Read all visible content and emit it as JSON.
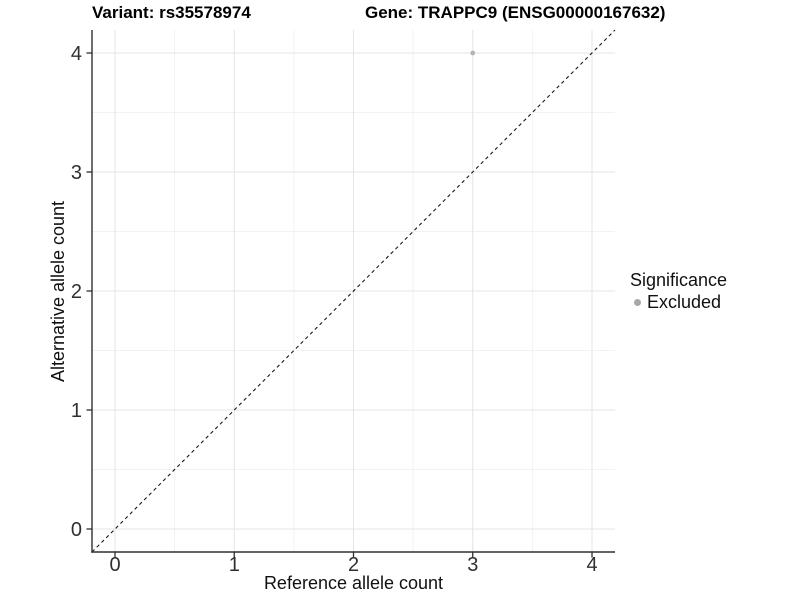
{
  "chart_data": {
    "type": "scatter",
    "title_left": "Variant: rs35578974",
    "title_right": "Gene: TRAPPC9 (ENSG00000167632)",
    "xlabel": "Reference allele count",
    "ylabel": "Alternative allele count",
    "x_ticks": [
      0,
      1,
      2,
      3,
      4
    ],
    "y_ticks": [
      0,
      1,
      2,
      3,
      4
    ],
    "x_minor": [
      0.5,
      1.5,
      2.5,
      3.5
    ],
    "y_minor": [
      0.5,
      1.5,
      2.5,
      3.5
    ],
    "xlim": [
      -0.19,
      4.19
    ],
    "ylim": [
      -0.19,
      4.19
    ],
    "grid": "major and minor gridlines on, white background",
    "points": [
      {
        "x": 3,
        "y": 4,
        "series": "Excluded"
      }
    ],
    "reference_line": {
      "kind": "identity y=x",
      "style": "dashed",
      "from": [
        -0.19,
        -0.19
      ],
      "to": [
        4.19,
        4.19
      ]
    },
    "legend": {
      "title": "Significance",
      "position": "right",
      "entries": [
        {
          "label": "Excluded",
          "color": "#a8a8a8"
        }
      ]
    },
    "colors": {
      "point": "#b5b5b5",
      "legend_point": "#a8a8a8",
      "grid_major": "#e4e4e4",
      "grid_minor": "#f2f2f2",
      "axis": "#2f2f2f",
      "identity_line": "#1a1a1a",
      "tick_label": "#303030"
    }
  }
}
